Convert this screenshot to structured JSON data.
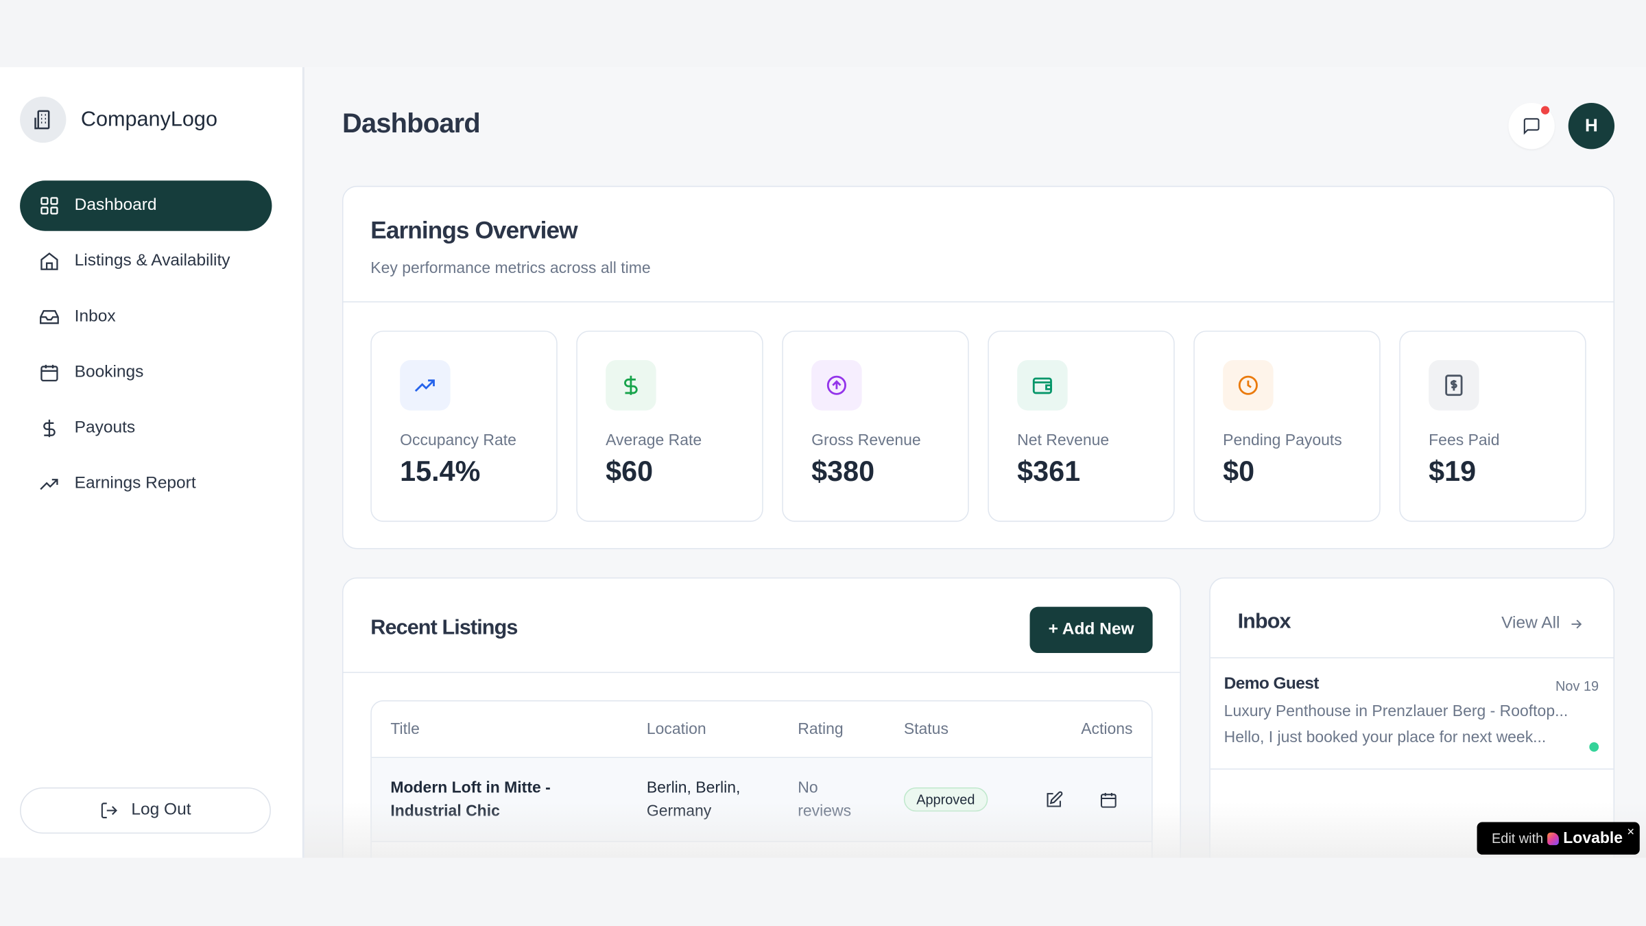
{
  "sidebar": {
    "logo": "CompanyLogo",
    "items": [
      {
        "label": "Dashboard",
        "icon": "grid-icon",
        "active": true
      },
      {
        "label": "Listings & Availability",
        "icon": "home-icon"
      },
      {
        "label": "Inbox",
        "icon": "inbox-icon"
      },
      {
        "label": "Bookings",
        "icon": "calendar-icon"
      },
      {
        "label": "Payouts",
        "icon": "dollar-icon"
      },
      {
        "label": "Earnings Report",
        "icon": "trending-up-icon"
      }
    ],
    "logout": "Log Out"
  },
  "header": {
    "title": "Dashboard",
    "avatar_initial": "H",
    "has_notification": true
  },
  "earnings": {
    "title": "Earnings Overview",
    "subtitle": "Key performance metrics across all time",
    "metrics": [
      {
        "label": "Occupancy Rate",
        "value": "15.4%",
        "icon": "trending-up-icon",
        "color": "#2563eb",
        "bg": "#eef3fe"
      },
      {
        "label": "Average Rate",
        "value": "$60",
        "icon": "dollar-icon",
        "color": "#16a34a",
        "bg": "#ecf8f0"
      },
      {
        "label": "Gross Revenue",
        "value": "$380",
        "icon": "arrow-up-circle-icon",
        "color": "#9333ea",
        "bg": "#f6eefe"
      },
      {
        "label": "Net Revenue",
        "value": "$361",
        "icon": "wallet-icon",
        "color": "#059669",
        "bg": "#eaf7f2"
      },
      {
        "label": "Pending Payouts",
        "value": "$0",
        "icon": "clock-icon",
        "color": "#ea7a0c",
        "bg": "#fef4ea"
      },
      {
        "label": "Fees Paid",
        "value": "$19",
        "icon": "receipt-icon",
        "color": "#4b5563",
        "bg": "#f1f2f4"
      }
    ]
  },
  "listings": {
    "title": "Recent Listings",
    "add_button": "+ Add New",
    "columns": [
      "Title",
      "Location",
      "Rating",
      "Status",
      "Actions"
    ],
    "rows": [
      {
        "title_l1": "Modern Loft in Mitte -",
        "title_l2": "Industrial Chic",
        "loc_l1": "Berlin, Berlin,",
        "loc_l2": "Germany",
        "rating_l1": "No",
        "rating_l2": "reviews",
        "status": "Approved"
      }
    ]
  },
  "inbox": {
    "title": "Inbox",
    "view_all": "View All",
    "messages": [
      {
        "name": "Demo Guest",
        "date": "Nov 19",
        "listing": "Luxury Penthouse in Prenzlauer Berg - Rooftop...",
        "preview": "Hello, I just booked your place for next week...",
        "unread": true
      }
    ]
  },
  "badge": {
    "prefix": "Edit with",
    "brand": "Lovable",
    "close": "×"
  }
}
